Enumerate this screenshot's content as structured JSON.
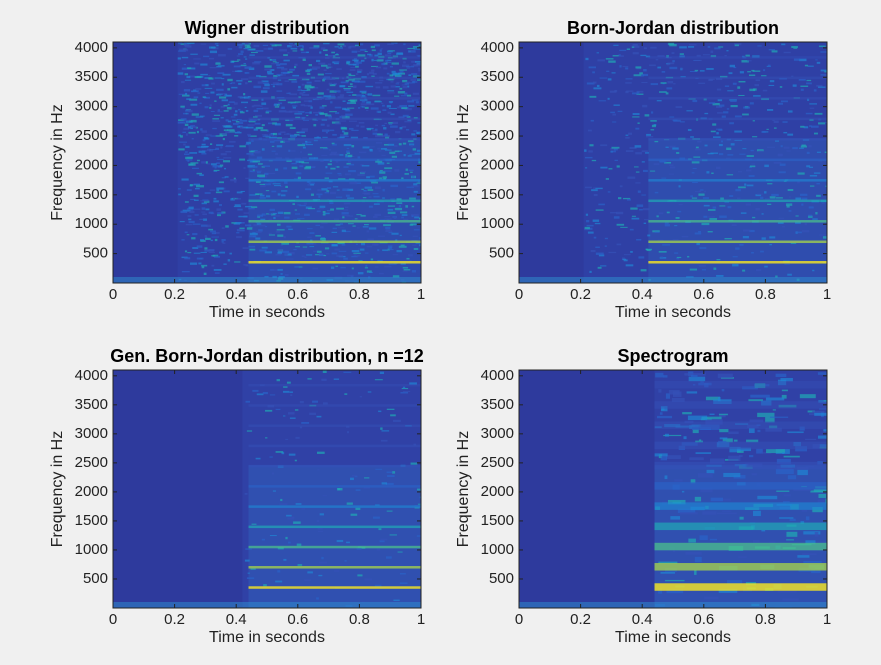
{
  "chart_data": [
    {
      "type": "heatmap",
      "title": "Wigner distribution",
      "xlabel": "Time in seconds",
      "ylabel": "Frequency in Hz",
      "xlim": [
        0,
        1
      ],
      "xticks": [
        0,
        0.2,
        0.4,
        0.6,
        0.8,
        1
      ],
      "ylim": [
        0,
        4100
      ],
      "yticks": [
        500,
        1000,
        1500,
        2000,
        2500,
        3000,
        3500,
        4000
      ]
    },
    {
      "type": "heatmap",
      "title": "Born-Jordan distribution",
      "xlabel": "Time in seconds",
      "ylabel": "Frequency in Hz",
      "xlim": [
        0,
        1
      ],
      "xticks": [
        0,
        0.2,
        0.4,
        0.6,
        0.8,
        1
      ],
      "ylim": [
        0,
        4100
      ],
      "yticks": [
        500,
        1000,
        1500,
        2000,
        2500,
        3000,
        3500,
        4000
      ]
    },
    {
      "type": "heatmap",
      "title": "Gen. Born-Jordan distribution, n =12",
      "xlabel": "Time in seconds",
      "ylabel": "Frequency in Hz",
      "xlim": [
        0,
        1
      ],
      "xticks": [
        0,
        0.2,
        0.4,
        0.6,
        0.8,
        1
      ],
      "ylim": [
        0,
        4100
      ],
      "yticks": [
        500,
        1000,
        1500,
        2000,
        2500,
        3000,
        3500,
        4000
      ]
    },
    {
      "type": "heatmap",
      "title": "Spectrogram",
      "xlabel": "Time in seconds",
      "ylabel": "Frequency in Hz",
      "xlim": [
        0,
        1
      ],
      "xticks": [
        0,
        0.2,
        0.4,
        0.6,
        0.8,
        1
      ],
      "ylim": [
        0,
        4100
      ],
      "yticks": [
        500,
        1000,
        1500,
        2000,
        2500,
        3000,
        3500,
        4000
      ]
    }
  ]
}
